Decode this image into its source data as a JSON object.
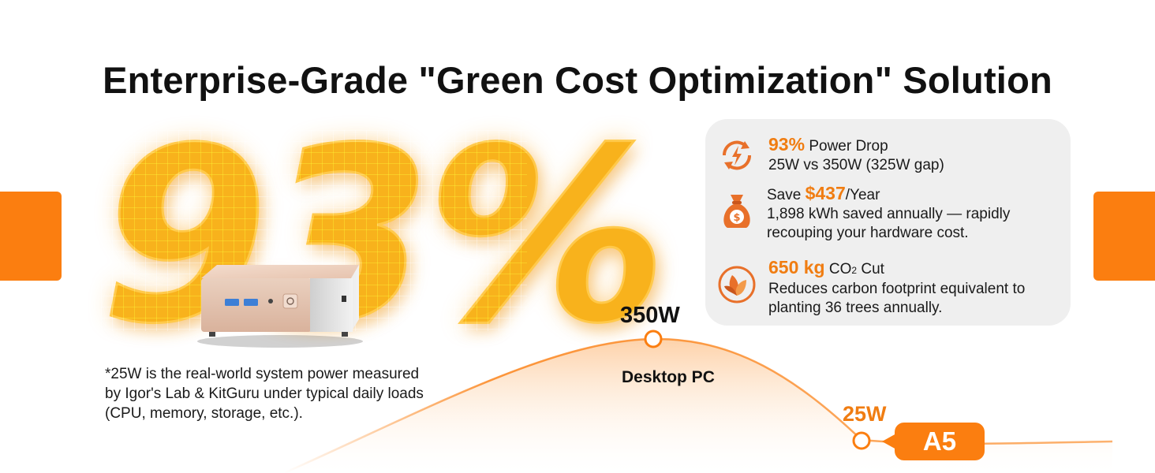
{
  "title": "Enterprise-Grade \"Green Cost Optimization\" Solution",
  "hero": {
    "percent": "93%"
  },
  "footnote": [
    "*25W is the real-world system power measured",
    "by Igor's Lab & KitGuru under typical daily loads",
    "(CPU, memory, storage, etc.)."
  ],
  "benefits": [
    {
      "icon": "power-cycle-icon",
      "highlight": "93%",
      "suffix": " Power Drop",
      "lines": [
        "25W vs 350W (325W gap)"
      ]
    },
    {
      "icon": "money-bag-icon",
      "prefix": "Save ",
      "highlight": "$437",
      "suffix": "/Year",
      "lines": [
        "1,898 kWh saved annually — rapidly",
        "recouping your hardware cost."
      ]
    },
    {
      "icon": "leaf-icon",
      "highlight": "650 kg",
      "suffix_main": " CO",
      "suffix_sub": "2",
      "suffix_end": " Cut",
      "lines": [
        "Reduces carbon footprint equivalent to",
        "planting 36 trees annually."
      ]
    }
  ],
  "comparison": {
    "desktop_power": "350W",
    "desktop_label": "Desktop PC",
    "minipc_power": "25W",
    "minipc_label": "A5"
  },
  "colors": {
    "accent": "#fb7e10",
    "hero_fill": "#f8b21c",
    "card_bg": "#efefef"
  }
}
